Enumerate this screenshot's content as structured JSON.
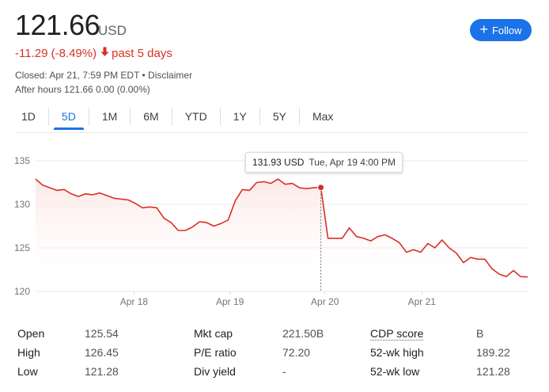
{
  "quote": {
    "price": "121.66",
    "currency": "USD",
    "change": "-11.29 (-8.49%)",
    "change_arrow": "down-arrow-icon",
    "period": "past 5 days",
    "closed": "Closed: Apr 21, 7:59 PM EDT • Disclaimer",
    "after_hours": "After hours 121.66 0.00 (0.00%)"
  },
  "follow_button": {
    "label": "Follow",
    "icon": "plus-icon"
  },
  "tabs": [
    {
      "label": "1D"
    },
    {
      "label": "5D"
    },
    {
      "label": "1M"
    },
    {
      "label": "6M"
    },
    {
      "label": "YTD"
    },
    {
      "label": "1Y"
    },
    {
      "label": "5Y"
    },
    {
      "label": "Max"
    }
  ],
  "active_tab": "5D",
  "tooltip": {
    "price": "131.93 USD",
    "date": "Tue, Apr 19 4:00 PM"
  },
  "colors": {
    "line": "#d93025",
    "accent": "#1a73e8",
    "fill_top": "#fce8e6"
  },
  "chart_data": {
    "type": "area",
    "x_tick_labels": [
      "Apr 18",
      "Apr 19",
      "Apr 20",
      "Apr 21"
    ],
    "y_ticks": [
      120,
      125,
      130,
      135
    ],
    "ylim": [
      120,
      135
    ],
    "grid": true,
    "values": [
      132.9,
      132.2,
      131.9,
      131.6,
      131.7,
      131.2,
      130.9,
      131.2,
      131.1,
      131.3,
      131.0,
      130.7,
      130.6,
      130.5,
      130.1,
      129.6,
      129.7,
      129.6,
      128.4,
      127.9,
      127.0,
      127.0,
      127.4,
      128.0,
      127.9,
      127.5,
      127.8,
      128.2,
      130.4,
      131.7,
      131.6,
      132.5,
      132.6,
      132.4,
      132.9,
      132.3,
      132.4,
      131.9,
      131.8,
      131.9,
      131.93,
      126.1,
      126.1,
      126.1,
      127.3,
      126.3,
      126.1,
      125.8,
      126.3,
      126.5,
      126.1,
      125.6,
      124.5,
      124.8,
      124.5,
      125.5,
      125.0,
      125.9,
      125.0,
      124.4,
      123.3,
      123.9,
      123.7,
      123.7,
      122.6,
      122.0,
      121.7,
      122.4,
      121.7,
      121.66
    ],
    "highlight_index": 40
  },
  "stats": [
    {
      "label": "Open",
      "value": "125.54",
      "label2": "Mkt cap",
      "value2": "221.50B",
      "label3": "CDP score",
      "value3": "B"
    },
    {
      "label": "High",
      "value": "126.45",
      "label2": "P/E ratio",
      "value2": "72.20",
      "label3": "52-wk high",
      "value3": "189.22"
    },
    {
      "label": "Low",
      "value": "121.28",
      "label2": "Div yield",
      "value2": "-",
      "label3": "52-wk low",
      "value3": "121.28"
    }
  ]
}
